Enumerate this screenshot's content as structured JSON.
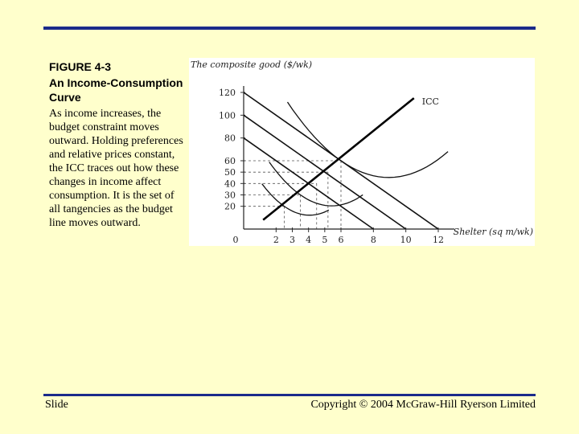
{
  "slide": {
    "figure_label": "FIGURE 4-3",
    "figure_title": "An Income-Consumption Curve",
    "description": "As income increases, the budget constraint moves outward. Holding preferences and relative prices constant, the ICC traces out how these changes in income affect consumption. It is the set of all tangencies as the budget line moves outward.",
    "footer_left": "Slide",
    "footer_right": "Copyright © 2004 McGraw-Hill Ryerson Limited"
  },
  "colors": {
    "accent_rule": "#1a2a8a",
    "background": "#ffffcc"
  },
  "chart_data": {
    "type": "line",
    "ylabel": "The composite good ($/wk)",
    "xlabel": "Shelter (sq m/wk)",
    "origin_label": "0",
    "xlim": [
      0,
      12
    ],
    "ylim": [
      0,
      120
    ],
    "x_ticks": [
      2,
      3,
      4,
      5,
      6,
      8,
      10,
      12
    ],
    "y_ticks": [
      20,
      30,
      40,
      50,
      60,
      80,
      100,
      120
    ],
    "budget_lines": [
      {
        "y_intercept": 80,
        "x_intercept": 8
      },
      {
        "y_intercept": 100,
        "x_intercept": 10
      },
      {
        "y_intercept": 120,
        "x_intercept": 12
      }
    ],
    "tangency_points": [
      {
        "x": 2.5,
        "y": 20
      },
      {
        "x": 3.5,
        "y": 30
      },
      {
        "x": 6,
        "y": 60
      }
    ],
    "icc": {
      "label": "ICC",
      "from": [
        1.2,
        8
      ],
      "to": [
        10.5,
        115
      ]
    },
    "dashed_guides": [
      {
        "x": 2.5,
        "y": 20
      },
      {
        "x": 3.5,
        "y": 30
      },
      {
        "x": 4.5,
        "y": 40
      },
      {
        "x": 5.2,
        "y": 50
      },
      {
        "x": 6,
        "y": 60
      }
    ]
  }
}
